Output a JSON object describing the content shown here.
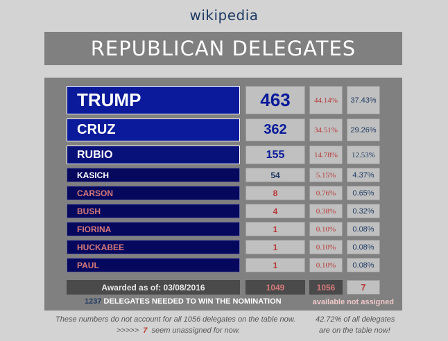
{
  "site_title": "wikipedia",
  "banner": "REPUBLICAN DELEGATES",
  "candidates": [
    {
      "name": "TRUMP",
      "delegates": "463",
      "pct_awarded": "44.14%",
      "pct_table": "37.43%"
    },
    {
      "name": "CRUZ",
      "delegates": "362",
      "pct_awarded": "34.51%",
      "pct_table": "29.26%"
    },
    {
      "name": "RUBIO",
      "delegates": "155",
      "pct_awarded": "14.78%",
      "pct_table": "12.53%"
    },
    {
      "name": "KASICH",
      "delegates": "54",
      "pct_awarded": "5.15%",
      "pct_table": "4.37%"
    },
    {
      "name": "CARSON",
      "delegates": "8",
      "pct_awarded": "0.76%",
      "pct_table": "0.65%"
    },
    {
      "name": "BUSH",
      "delegates": "4",
      "pct_awarded": "0.38%",
      "pct_table": "0.32%"
    },
    {
      "name": "FIORINA",
      "delegates": "1",
      "pct_awarded": "0.10%",
      "pct_table": "0.08%"
    },
    {
      "name": "HUCKABEE",
      "delegates": "1",
      "pct_awarded": "0.10%",
      "pct_table": "0.08%"
    },
    {
      "name": "PAUL",
      "delegates": "1",
      "pct_awarded": "0.10%",
      "pct_table": "0.08%"
    }
  ],
  "totals": {
    "label": "Awarded as of: 03/08/2016",
    "awarded": "1049",
    "available": "1056",
    "unassigned": "7"
  },
  "needed": {
    "number": "1237",
    "text": " DELEGATES NEEDED TO WIN THE NOMINATION"
  },
  "labels": {
    "available": "available",
    "not_assigned": "not assigned"
  },
  "notes": {
    "left_line1": "These numbers do not account for all 1056 delegates on the table now.",
    "left_line2_prefix": ">>>>>  ",
    "left_line2_number": "7",
    "left_line2_suffix": "  seem unassigned for now.",
    "right_line1": "42.72% of all delegates",
    "right_line2": "are on the table now!"
  },
  "colors": {
    "background": "#d3d3d3",
    "panel": "#808080",
    "leader_blue": "#0a1a9a",
    "dark_navy": "#06085e",
    "pink_text": "#d47a7a",
    "red_text": "#b83a3a",
    "navy_text": "#1f3b63"
  }
}
